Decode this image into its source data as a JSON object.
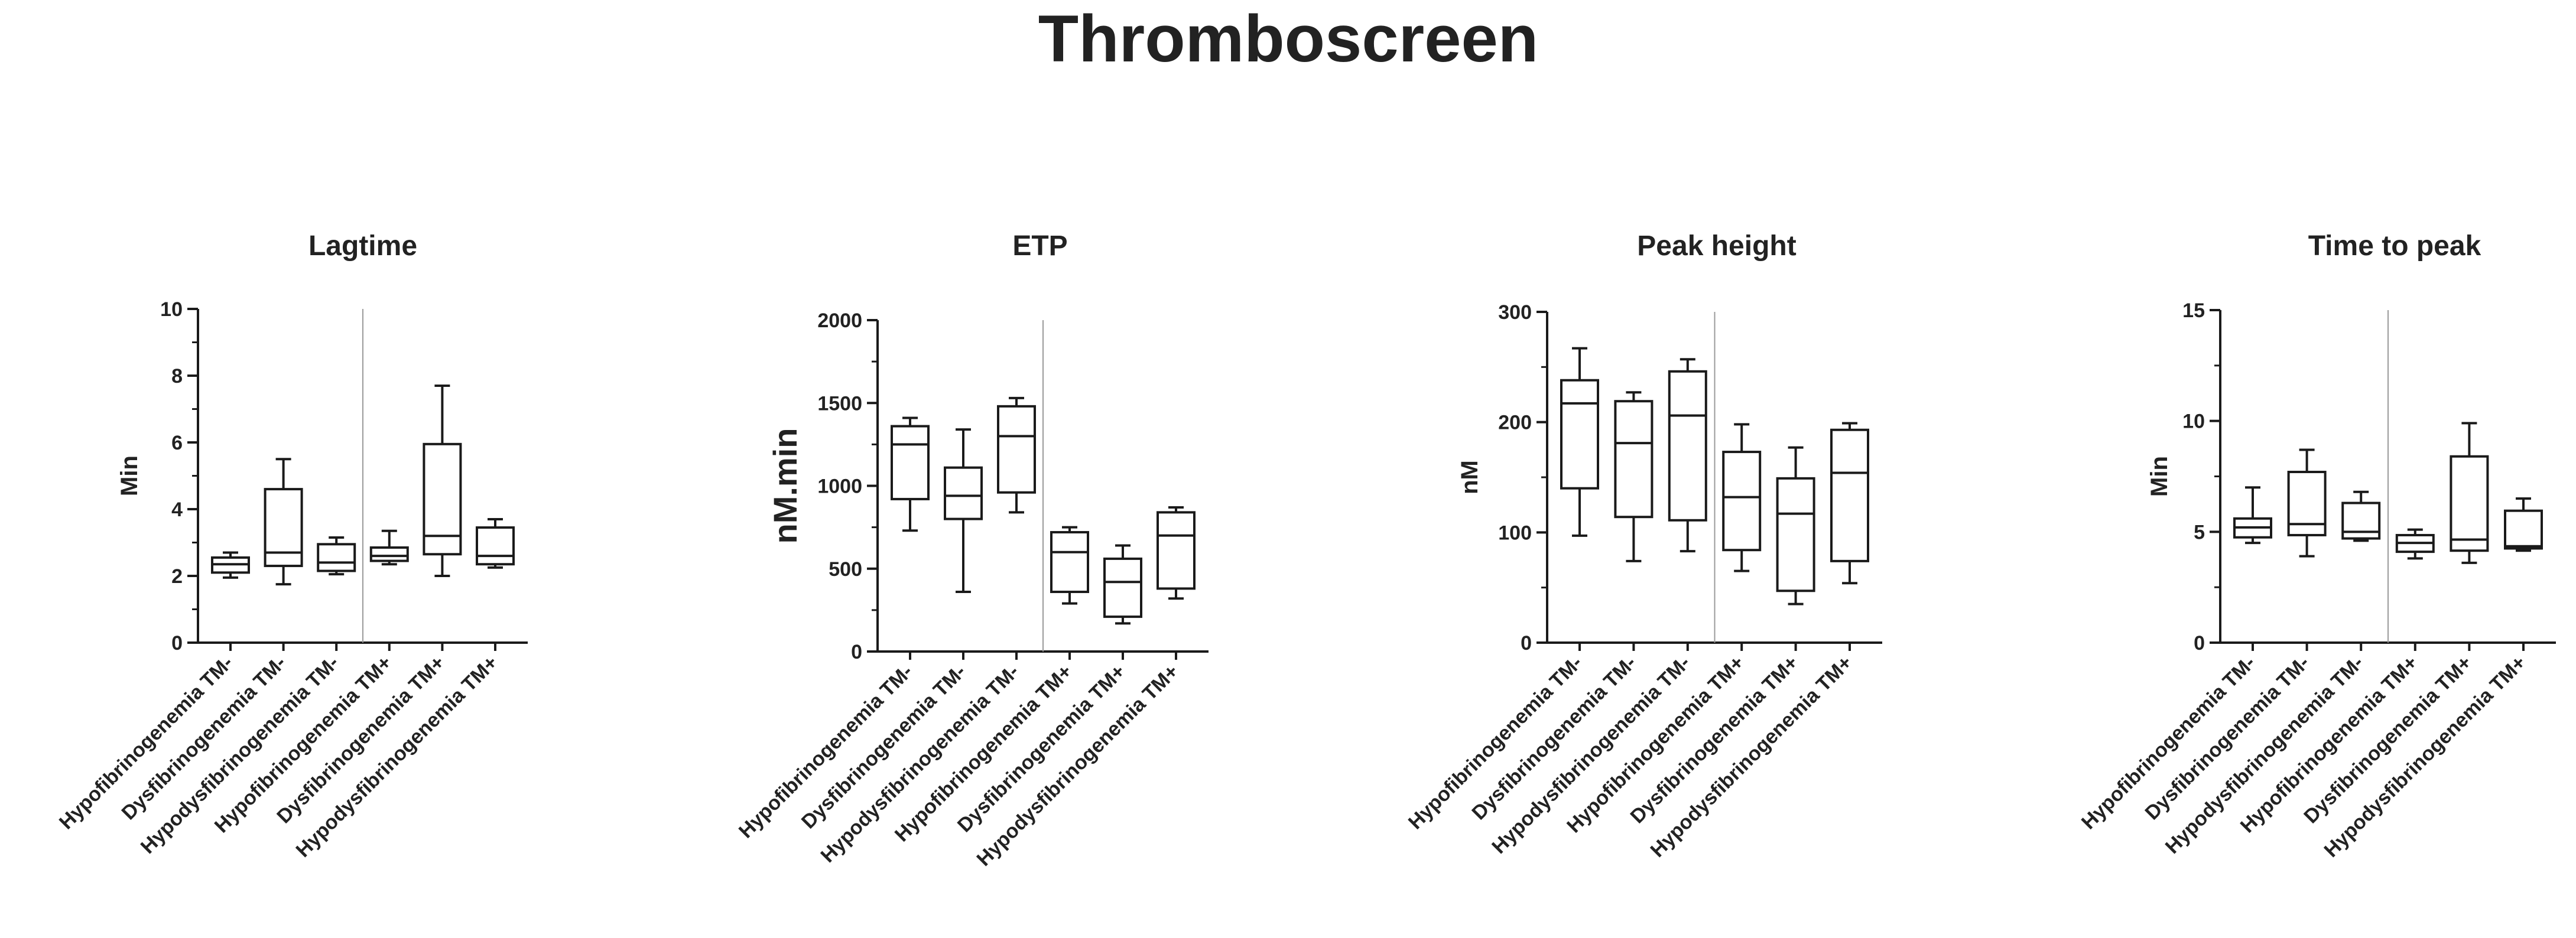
{
  "title": "Thromboscreen",
  "chart_data": [
    {
      "type": "box",
      "title": "Lagtime",
      "ylabel": "Min",
      "ylim": [
        0,
        10
      ],
      "yticks": [
        0,
        2,
        4,
        6,
        8,
        10
      ],
      "categories": [
        "Hypofibrinogenemia TM-",
        "Dysfibrinogenemia TM-",
        "Hypodysfibrinogenemia TM-",
        "Hypofibrinogenemia TM+",
        "Dysfibrinogenemia TM+",
        "Hypodysfibrinogenemia TM+"
      ],
      "divider_after": 3,
      "boxes": [
        {
          "min": 1.95,
          "q1": 2.1,
          "median": 2.35,
          "q3": 2.55,
          "max": 2.7
        },
        {
          "min": 1.75,
          "q1": 2.3,
          "median": 2.7,
          "q3": 4.6,
          "max": 5.5
        },
        {
          "min": 2.05,
          "q1": 2.15,
          "median": 2.4,
          "q3": 2.95,
          "max": 3.15
        },
        {
          "min": 2.35,
          "q1": 2.45,
          "median": 2.6,
          "q3": 2.85,
          "max": 3.35
        },
        {
          "min": 2.0,
          "q1": 2.65,
          "median": 3.2,
          "q3": 5.95,
          "max": 7.7
        },
        {
          "min": 2.25,
          "q1": 2.35,
          "median": 2.6,
          "q3": 3.45,
          "max": 3.7
        }
      ]
    },
    {
      "type": "box",
      "title": "ETP",
      "ylabel": "nM.min",
      "ylim": [
        0,
        2000
      ],
      "yticks": [
        0,
        500,
        1000,
        1500,
        2000
      ],
      "categories": [
        "Hypofibrinogenemia TM-",
        "Dysfibrinogenemia TM-",
        "Hypodysfibrinogenemia TM-",
        "Hypofibrinogenemia TM+",
        "Dysfibrinogenemia TM+",
        "Hypodysfibrinogenemia TM+"
      ],
      "divider_after": 3,
      "boxes": [
        {
          "min": 730,
          "q1": 920,
          "median": 1250,
          "q3": 1360,
          "max": 1410
        },
        {
          "min": 360,
          "q1": 800,
          "median": 940,
          "q3": 1110,
          "max": 1340
        },
        {
          "min": 840,
          "q1": 960,
          "median": 1300,
          "q3": 1480,
          "max": 1530
        },
        {
          "min": 290,
          "q1": 360,
          "median": 600,
          "q3": 720,
          "max": 750
        },
        {
          "min": 170,
          "q1": 210,
          "median": 420,
          "q3": 560,
          "max": 640
        },
        {
          "min": 320,
          "q1": 380,
          "median": 700,
          "q3": 840,
          "max": 870
        }
      ]
    },
    {
      "type": "box",
      "title": "Peak height",
      "ylabel": "nM",
      "ylim": [
        0,
        300
      ],
      "yticks": [
        0,
        100,
        200,
        300
      ],
      "categories": [
        "Hypofibrinogenemia TM-",
        "Dysfibrinogenemia TM-",
        "Hypodysfibrinogenemia TM-",
        "Hypofibrinogenemia TM+",
        "Dysfibrinogenemia TM+",
        "Hypodysfibrinogenemia TM+"
      ],
      "divider_after": 3,
      "boxes": [
        {
          "min": 97,
          "q1": 140,
          "median": 217,
          "q3": 238,
          "max": 267
        },
        {
          "min": 74,
          "q1": 114,
          "median": 181,
          "q3": 219,
          "max": 227
        },
        {
          "min": 83,
          "q1": 111,
          "median": 206,
          "q3": 246,
          "max": 257
        },
        {
          "min": 65,
          "q1": 84,
          "median": 132,
          "q3": 173,
          "max": 198
        },
        {
          "min": 35,
          "q1": 47,
          "median": 117,
          "q3": 149,
          "max": 177
        },
        {
          "min": 54,
          "q1": 74,
          "median": 154,
          "q3": 193,
          "max": 199
        }
      ]
    },
    {
      "type": "box",
      "title": "Time to peak",
      "ylabel": "Min",
      "ylim": [
        0,
        15
      ],
      "yticks": [
        0,
        5,
        10,
        15
      ],
      "categories": [
        "Hypofibrinogenemia TM-",
        "Dysfibrinogenemia TM-",
        "Hypodysfibrinogenemia TM-",
        "Hypofibrinogenemia TM+",
        "Dysfibrinogenemia TM+",
        "Hypodysfibrinogenemia TM+"
      ],
      "divider_after": 3,
      "boxes": [
        {
          "min": 4.5,
          "q1": 4.75,
          "median": 5.2,
          "q3": 5.6,
          "max": 7.0
        },
        {
          "min": 3.9,
          "q1": 4.85,
          "median": 5.35,
          "q3": 7.7,
          "max": 8.7
        },
        {
          "min": 4.6,
          "q1": 4.7,
          "median": 5.0,
          "q3": 6.3,
          "max": 6.8
        },
        {
          "min": 3.8,
          "q1": 4.1,
          "median": 4.5,
          "q3": 4.85,
          "max": 5.1
        },
        {
          "min": 3.6,
          "q1": 4.15,
          "median": 4.65,
          "q3": 8.4,
          "max": 9.9
        },
        {
          "min": 4.15,
          "q1": 4.25,
          "median": 4.35,
          "q3": 5.95,
          "max": 6.5
        }
      ]
    }
  ]
}
